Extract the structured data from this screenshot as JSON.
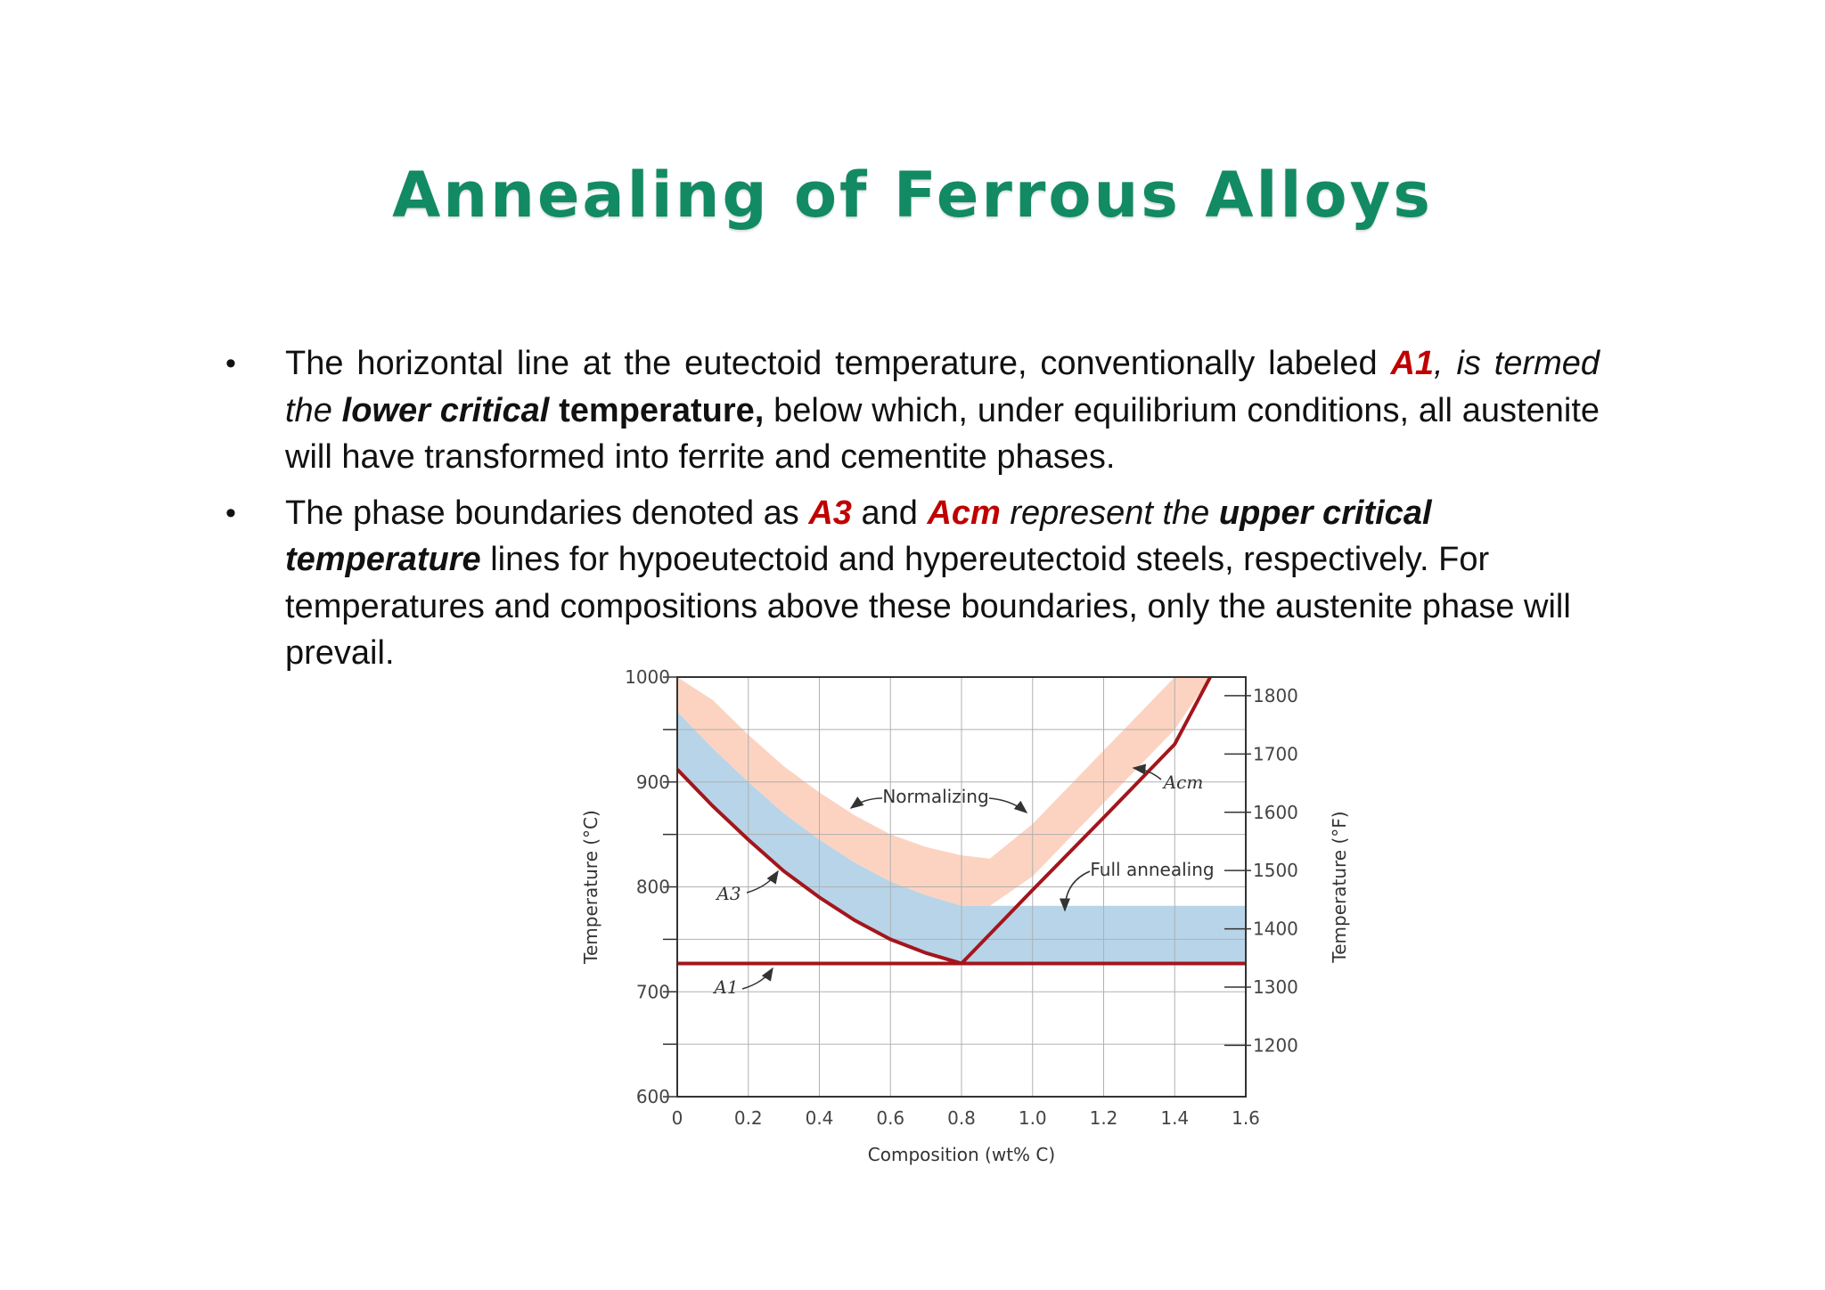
{
  "slide": {
    "title": "Annealing of Ferrous Alloys"
  },
  "bullets": [
    {
      "parts": [
        "The horizontal line at the eutectoid temperature, conventionally labeled ",
        "A1",
        ", is",
        " termed the ",
        "lower critical",
        " temperature,",
        " below which, under equilibrium conditions, all austenite will have transformed into ferrite and cementite phases."
      ]
    },
    {
      "parts": [
        "The phase boundaries denoted as ",
        "A3",
        " and ",
        "Acm",
        " represent the ",
        "upper critical temperature",
        " lines for hypoeutectoid and hypereutectoid steels, respectively. For temperatures and compositions above these boundaries, only the austenite phase will prevail."
      ]
    }
  ],
  "chart_data": {
    "type": "line",
    "xlabel": "Composition (wt% C)",
    "ylabel": "Temperature (°C)",
    "ylabel_right": "Temperature (°F)",
    "xlim": [
      0,
      1.6
    ],
    "ylim": [
      600,
      1000
    ],
    "ylim_right_f": [
      1112,
      1832
    ],
    "x_ticks": [
      "0",
      "0.2",
      "0.4",
      "0.6",
      "0.8",
      "1.0",
      "1.2",
      "1.4",
      "1.6"
    ],
    "y_ticks": [
      "600",
      "700",
      "800",
      "900",
      "1000"
    ],
    "y_ticks_right": [
      "1200",
      "1300",
      "1400",
      "1500",
      "1600",
      "1700",
      "1800"
    ],
    "grid": true,
    "colors": {
      "line": "#a3161c",
      "normalizing": "#fcd3c1",
      "full_annealing": "#b8d4e8",
      "grid": "#b0b0b0",
      "frame": "#333333"
    },
    "series": [
      {
        "name": "A1",
        "x": [
          0,
          1.6
        ],
        "y": [
          727,
          727
        ]
      },
      {
        "name": "A3",
        "x": [
          0,
          0.1,
          0.2,
          0.3,
          0.4,
          0.5,
          0.6,
          0.7,
          0.8
        ],
        "y": [
          912,
          877,
          845,
          815,
          790,
          768,
          750,
          737,
          727
        ]
      },
      {
        "name": "Acm",
        "x": [
          0.8,
          1.0,
          1.2,
          1.4,
          1.5
        ],
        "y": [
          727,
          797,
          866,
          936,
          1000
        ]
      }
    ],
    "regions": [
      {
        "name": "Normalizing",
        "lower_x": [
          0,
          0.1,
          0.2,
          0.3,
          0.4,
          0.5,
          0.6,
          0.7,
          0.8,
          0.88,
          1.0,
          1.2,
          1.4,
          1.5
        ],
        "lower_y": [
          967,
          932,
          900,
          870,
          845,
          823,
          805,
          792,
          782,
          782,
          810,
          880,
          950,
          1000
        ],
        "upper_x": [
          0,
          0.1,
          0.2,
          0.3,
          0.4,
          0.5,
          0.6,
          0.7,
          0.8,
          0.88,
          1.0,
          1.2,
          1.4,
          1.5
        ],
        "upper_y": [
          1000,
          978,
          945,
          915,
          890,
          868,
          850,
          838,
          830,
          827,
          860,
          930,
          1000,
          1000
        ]
      },
      {
        "name": "Full annealing",
        "lower_x": [
          0,
          0.1,
          0.2,
          0.3,
          0.4,
          0.5,
          0.6,
          0.7,
          0.8,
          1.6
        ],
        "lower_y": [
          912,
          877,
          845,
          815,
          790,
          768,
          750,
          737,
          727,
          727
        ],
        "upper_x": [
          0,
          0.1,
          0.2,
          0.3,
          0.4,
          0.5,
          0.6,
          0.7,
          0.8,
          1.6
        ],
        "upper_y": [
          967,
          932,
          900,
          870,
          845,
          823,
          805,
          792,
          782,
          782
        ]
      }
    ],
    "annotations": [
      "Normalizing",
      "Full annealing",
      "A3",
      "A1",
      "Acm"
    ]
  }
}
